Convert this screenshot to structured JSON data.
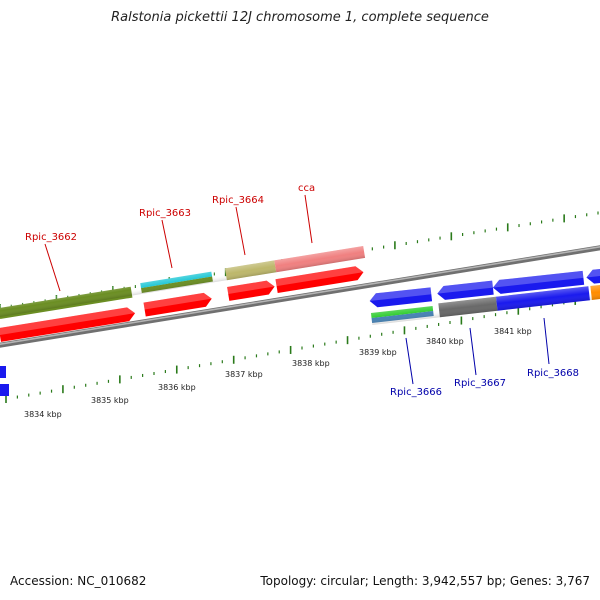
{
  "title": "Ralstonia pickettii 12J chromosome 1, complete sequence",
  "footer": {
    "accession": "Accession: NC_010682",
    "summary": "Topology: circular; Length: 3,942,557 bp; Genes: 3,767"
  },
  "colors": {
    "backbone": "#808080",
    "tick_dark": "#2a7a1a",
    "forward_label": "#cc0000",
    "reverse_label": "#0000aa"
  },
  "ticks": [
    {
      "label": "3834 kbp"
    },
    {
      "label": "3835 kbp"
    },
    {
      "label": "3836 kbp"
    },
    {
      "label": "3837 kbp"
    },
    {
      "label": "3838 kbp"
    },
    {
      "label": "3839 kbp"
    },
    {
      "label": "3840 kbp"
    },
    {
      "label": "3841 kbp"
    }
  ],
  "gene_labels": [
    {
      "name": "Rpic_3662",
      "strand": "forward"
    },
    {
      "name": "Rpic_3663",
      "strand": "forward"
    },
    {
      "name": "Rpic_3664",
      "strand": "forward"
    },
    {
      "name": "cca",
      "strand": "forward"
    },
    {
      "name": "Rpic_3666",
      "strand": "reverse"
    },
    {
      "name": "Rpic_3667",
      "strand": "reverse"
    },
    {
      "name": "Rpic_3668",
      "strand": "reverse"
    }
  ]
}
